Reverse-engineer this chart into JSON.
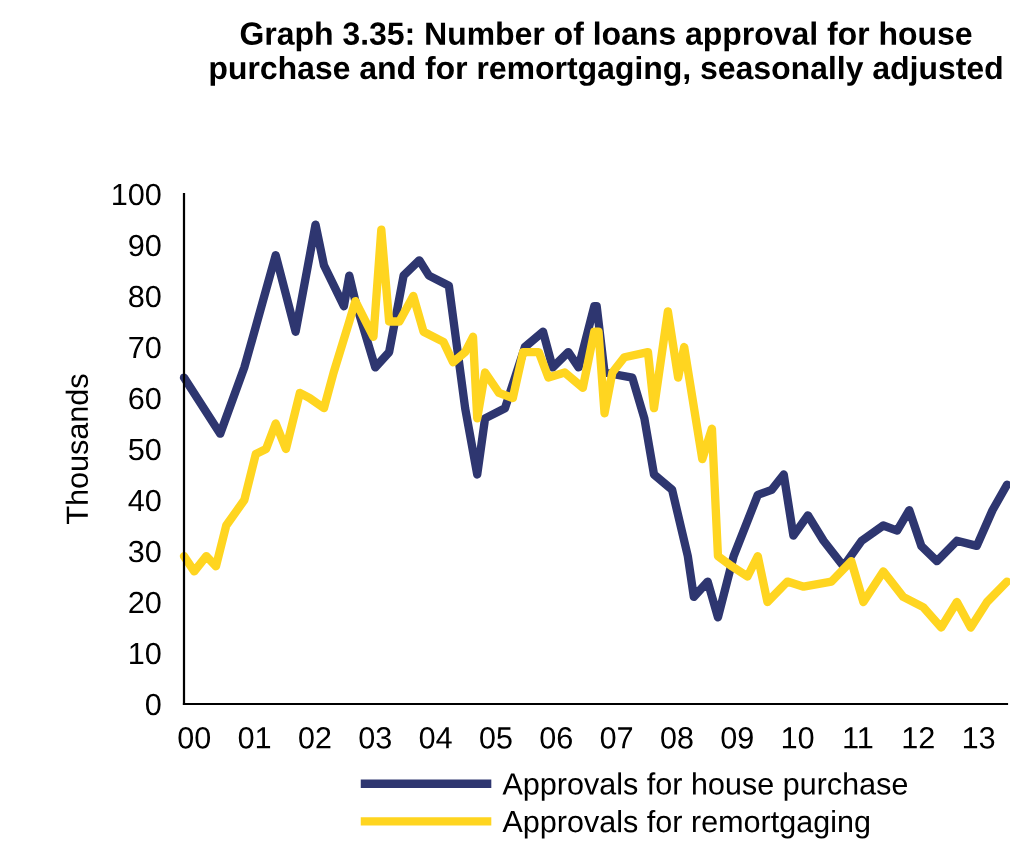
{
  "chart_data": {
    "type": "line",
    "title": "Graph 3.35: Number of loans approval for house purchase and for remortgaging, seasonally adjusted",
    "ylabel": "Thousands",
    "series": [
      {
        "name": "Approvals for house purchase",
        "color": "#2e3670",
        "x": [
          1999.83,
          2000.43,
          2000.83,
          2001.02,
          2001.35,
          2001.68,
          2002.01,
          2002.15,
          2002.48,
          2002.57,
          2002.67,
          2003.0,
          2003.23,
          2003.47,
          2003.73,
          2003.89,
          2004.22,
          2004.49,
          2004.69,
          2004.82,
          2005.15,
          2005.48,
          2005.78,
          2005.94,
          2006.2,
          2006.37,
          2006.63,
          2006.67,
          2006.8,
          2007.26,
          2007.46,
          2007.62,
          2007.92,
          2008.18,
          2008.28,
          2008.51,
          2008.68,
          2008.94,
          2009.34,
          2009.57,
          2009.77,
          2009.93,
          2010.17,
          2010.43,
          2010.76,
          2011.06,
          2011.42,
          2011.65,
          2011.85,
          2012.05,
          2012.31,
          2012.64,
          2012.97,
          2013.23,
          2013.47
        ],
        "values": [
          64,
          53,
          66,
          74,
          88,
          73,
          94,
          86,
          78,
          84,
          79,
          66,
          69,
          84,
          87,
          84,
          82,
          58,
          45,
          56,
          58,
          70,
          73,
          66,
          69,
          66,
          78,
          78,
          65,
          64,
          56,
          45,
          42,
          29,
          21,
          24,
          17,
          29,
          41,
          42,
          45,
          33,
          37,
          32,
          27,
          32,
          35,
          34,
          38,
          31,
          28,
          32,
          31,
          38,
          43
        ]
      },
      {
        "name": "Approvals for remortgaging",
        "color": "#ffd520",
        "x": [
          1999.83,
          2000.0,
          2000.2,
          2000.36,
          2000.53,
          2000.83,
          2001.02,
          2001.19,
          2001.35,
          2001.52,
          2001.75,
          2001.91,
          2002.15,
          2002.31,
          2002.57,
          2002.67,
          2002.97,
          2003.1,
          2003.23,
          2003.4,
          2003.63,
          2003.8,
          2004.13,
          2004.29,
          2004.49,
          2004.62,
          2004.69,
          2004.82,
          2005.05,
          2005.28,
          2005.45,
          2005.71,
          2005.87,
          2006.14,
          2006.44,
          2006.63,
          2006.7,
          2006.8,
          2006.93,
          2007.13,
          2007.52,
          2007.62,
          2007.85,
          2008.02,
          2008.12,
          2008.42,
          2008.58,
          2008.68,
          2008.91,
          2009.17,
          2009.34,
          2009.5,
          2009.83,
          2010.1,
          2010.56,
          2010.89,
          2011.09,
          2011.42,
          2011.75,
          2012.08,
          2012.38,
          2012.64,
          2012.87,
          2013.14,
          2013.47
        ],
        "values": [
          29,
          26,
          29,
          27,
          35,
          40,
          49,
          50,
          55,
          50,
          61,
          60,
          58,
          65,
          75,
          79,
          72,
          93,
          75,
          75,
          80,
          73,
          71,
          67,
          69,
          72,
          56,
          65,
          61,
          60,
          69,
          69,
          64,
          65,
          62,
          73,
          73,
          57,
          65,
          68,
          69,
          58,
          77,
          64,
          70,
          48,
          54,
          29,
          27,
          25,
          29,
          20,
          24,
          23,
          24,
          28,
          20,
          26,
          21,
          19,
          15,
          20,
          15,
          20,
          24
        ]
      }
    ],
    "xlim": [
      1999.83,
      2013.47
    ],
    "xticks": [
      {
        "value": 2000,
        "label": "00"
      },
      {
        "value": 2001,
        "label": "01"
      },
      {
        "value": 2002,
        "label": "02"
      },
      {
        "value": 2003,
        "label": "03"
      },
      {
        "value": 2004,
        "label": "04"
      },
      {
        "value": 2005,
        "label": "05"
      },
      {
        "value": 2006,
        "label": "06"
      },
      {
        "value": 2007,
        "label": "07"
      },
      {
        "value": 2008,
        "label": "08"
      },
      {
        "value": 2009,
        "label": "09"
      },
      {
        "value": 2010,
        "label": "10"
      },
      {
        "value": 2011,
        "label": "11"
      },
      {
        "value": 2012,
        "label": "12"
      },
      {
        "value": 2013,
        "label": "13"
      }
    ],
    "ylim": [
      0,
      100
    ],
    "yticks": [
      0,
      10,
      20,
      30,
      40,
      50,
      60,
      70,
      80,
      90,
      100
    ],
    "grid": false,
    "legend": "bottom",
    "marker": "none",
    "line_style": "solid"
  }
}
